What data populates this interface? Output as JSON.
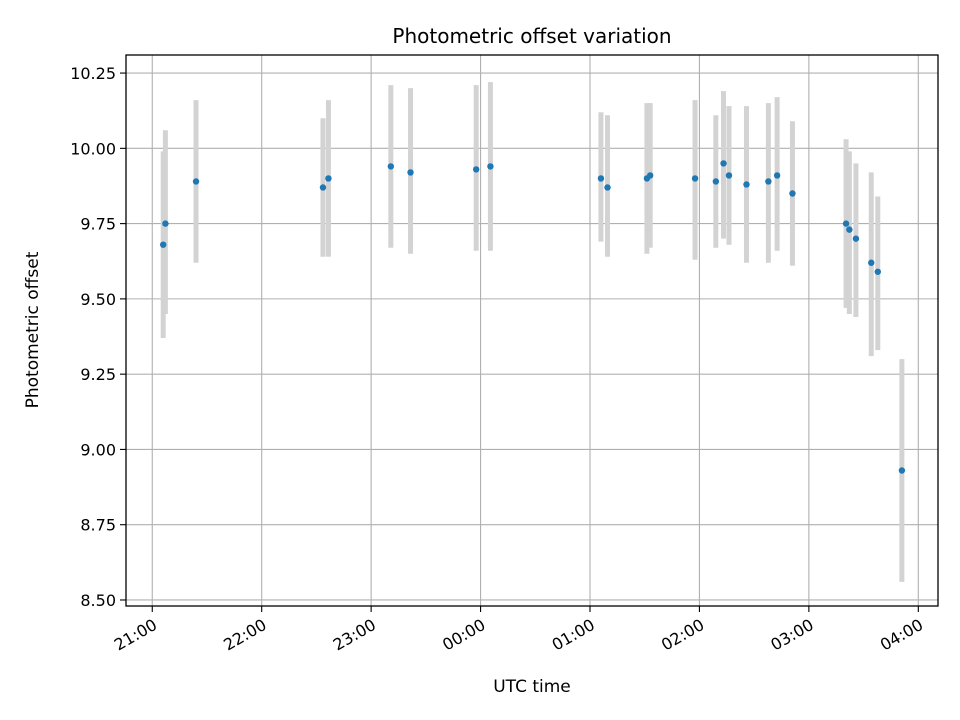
{
  "chart_data": {
    "type": "scatter",
    "title": "Photometric offset variation",
    "xlabel": "UTC time",
    "ylabel": "Photometric offset",
    "grid": true,
    "x_unit": "hours",
    "x_ticks": [
      {
        "value": 21,
        "label": "21:00"
      },
      {
        "value": 22,
        "label": "22:00"
      },
      {
        "value": 23,
        "label": "23:00"
      },
      {
        "value": 24,
        "label": "00:00"
      },
      {
        "value": 25,
        "label": "01:00"
      },
      {
        "value": 26,
        "label": "02:00"
      },
      {
        "value": 27,
        "label": "03:00"
      },
      {
        "value": 28,
        "label": "04:00"
      }
    ],
    "y_ticks": [
      {
        "value": 8.5,
        "label": "8.50"
      },
      {
        "value": 8.75,
        "label": "8.75"
      },
      {
        "value": 9.0,
        "label": "9.00"
      },
      {
        "value": 9.25,
        "label": "9.25"
      },
      {
        "value": 9.5,
        "label": "9.50"
      },
      {
        "value": 9.75,
        "label": "9.75"
      },
      {
        "value": 10.0,
        "label": "10.00"
      },
      {
        "value": 10.25,
        "label": "10.25"
      }
    ],
    "xlim": [
      20.76,
      28.18
    ],
    "ylim": [
      8.48,
      10.31
    ],
    "colors": {
      "point": "#1f77b4",
      "errorbar": "#d3d3d3",
      "grid": "#b0b0b0"
    },
    "points": [
      {
        "t": 21.1,
        "y": 9.68,
        "lo": 9.37,
        "hi": 9.99
      },
      {
        "t": 21.12,
        "y": 9.75,
        "lo": 9.45,
        "hi": 10.06
      },
      {
        "t": 21.4,
        "y": 9.89,
        "lo": 9.62,
        "hi": 10.16
      },
      {
        "t": 22.56,
        "y": 9.87,
        "lo": 9.64,
        "hi": 10.1
      },
      {
        "t": 22.61,
        "y": 9.9,
        "lo": 9.64,
        "hi": 10.16
      },
      {
        "t": 23.18,
        "y": 9.94,
        "lo": 9.67,
        "hi": 10.21
      },
      {
        "t": 23.36,
        "y": 9.92,
        "lo": 9.65,
        "hi": 10.2
      },
      {
        "t": 23.96,
        "y": 9.93,
        "lo": 9.66,
        "hi": 10.21
      },
      {
        "t": 24.09,
        "y": 9.94,
        "lo": 9.66,
        "hi": 10.22
      },
      {
        "t": 25.1,
        "y": 9.9,
        "lo": 9.69,
        "hi": 10.12
      },
      {
        "t": 25.16,
        "y": 9.87,
        "lo": 9.64,
        "hi": 10.11
      },
      {
        "t": 25.52,
        "y": 9.9,
        "lo": 9.65,
        "hi": 10.15
      },
      {
        "t": 25.55,
        "y": 9.91,
        "lo": 9.67,
        "hi": 10.15
      },
      {
        "t": 25.96,
        "y": 9.9,
        "lo": 9.63,
        "hi": 10.16
      },
      {
        "t": 26.15,
        "y": 9.89,
        "lo": 9.67,
        "hi": 10.11
      },
      {
        "t": 26.22,
        "y": 9.95,
        "lo": 9.7,
        "hi": 10.19
      },
      {
        "t": 26.27,
        "y": 9.91,
        "lo": 9.68,
        "hi": 10.14
      },
      {
        "t": 26.43,
        "y": 9.88,
        "lo": 9.62,
        "hi": 10.14
      },
      {
        "t": 26.63,
        "y": 9.89,
        "lo": 9.62,
        "hi": 10.15
      },
      {
        "t": 26.71,
        "y": 9.91,
        "lo": 9.66,
        "hi": 10.17
      },
      {
        "t": 26.85,
        "y": 9.85,
        "lo": 9.61,
        "hi": 10.09
      },
      {
        "t": 27.34,
        "y": 9.75,
        "lo": 9.47,
        "hi": 10.03
      },
      {
        "t": 27.37,
        "y": 9.73,
        "lo": 9.45,
        "hi": 9.99
      },
      {
        "t": 27.43,
        "y": 9.7,
        "lo": 9.44,
        "hi": 9.95
      },
      {
        "t": 27.57,
        "y": 9.62,
        "lo": 9.31,
        "hi": 9.92
      },
      {
        "t": 27.63,
        "y": 9.59,
        "lo": 9.33,
        "hi": 9.84
      },
      {
        "t": 27.85,
        "y": 8.93,
        "lo": 8.56,
        "hi": 9.3
      }
    ]
  }
}
